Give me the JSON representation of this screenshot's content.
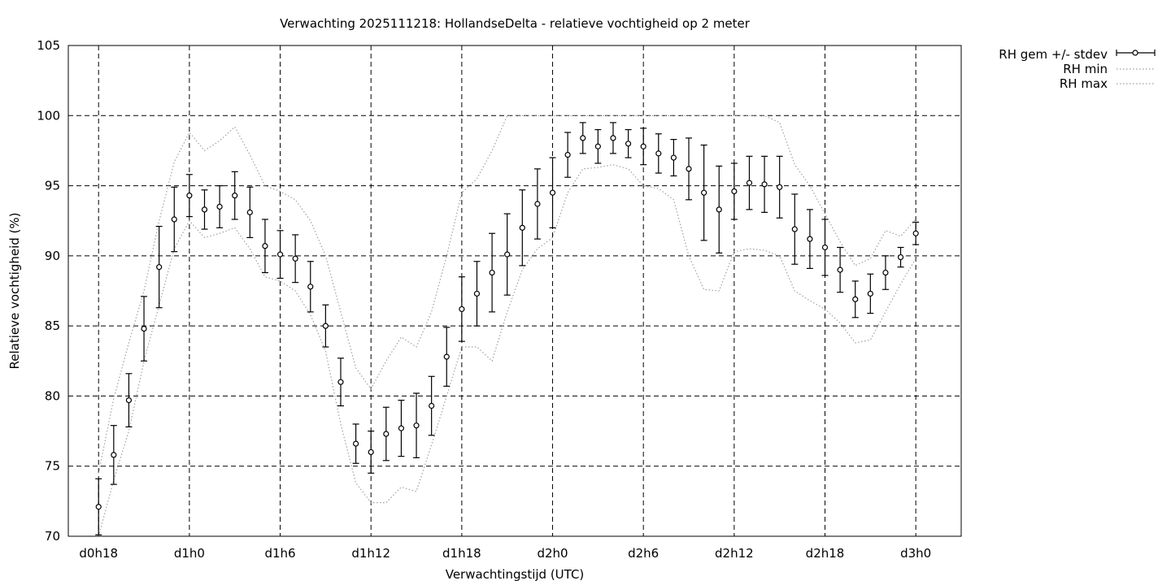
{
  "chart_data": {
    "type": "line",
    "title": "Verwachting 2025111218: HollandseDelta - relatieve vochtigheid op 2 meter",
    "xlabel": "Verwachtingstijd (UTC)",
    "ylabel": "Relatieve vochtigheid (%)",
    "xlim": [
      16,
      75
    ],
    "ylim": [
      70,
      105
    ],
    "xticks": [
      {
        "x": 18,
        "label": "d0h18"
      },
      {
        "x": 24,
        "label": "d1h0"
      },
      {
        "x": 30,
        "label": "d1h6"
      },
      {
        "x": 36,
        "label": "d1h12"
      },
      {
        "x": 42,
        "label": "d1h18"
      },
      {
        "x": 48,
        "label": "d2h0"
      },
      {
        "x": 54,
        "label": "d2h6"
      },
      {
        "x": 60,
        "label": "d2h12"
      },
      {
        "x": 66,
        "label": "d2h18"
      },
      {
        "x": 72,
        "label": "d3h0"
      }
    ],
    "yticks": [
      70,
      75,
      80,
      85,
      90,
      95,
      100,
      105
    ],
    "grid": true,
    "legend_position": "outside-top-right",
    "x": [
      18,
      19,
      20,
      21,
      22,
      23,
      24,
      25,
      26,
      27,
      28,
      29,
      30,
      31,
      32,
      33,
      34,
      35,
      36,
      37,
      38,
      39,
      40,
      41,
      42,
      43,
      44,
      45,
      46,
      47,
      48,
      49,
      50,
      51,
      52,
      53,
      54,
      55,
      56,
      57,
      58,
      59,
      60,
      61,
      62,
      63,
      64,
      65,
      66,
      67,
      68,
      69,
      70,
      71,
      72
    ],
    "series": [
      {
        "name": "RH gem +/- stdev",
        "style": "errorbars",
        "values": [
          72.1,
          75.8,
          79.7,
          84.8,
          89.2,
          92.6,
          94.3,
          93.3,
          93.5,
          94.3,
          93.1,
          90.7,
          90.1,
          89.8,
          87.8,
          85.0,
          81.0,
          76.6,
          76.0,
          77.3,
          77.7,
          77.9,
          79.3,
          82.8,
          86.2,
          87.3,
          88.8,
          90.1,
          92.0,
          93.7,
          94.5,
          97.2,
          98.4,
          97.8,
          98.4,
          98.0,
          97.8,
          97.3,
          97.0,
          96.2,
          94.5,
          93.3,
          94.6,
          95.2,
          95.1,
          94.9,
          91.9,
          91.2,
          90.6,
          89.0,
          86.9,
          87.3,
          88.8,
          89.9,
          91.6
        ],
        "stdev": [
          2.0,
          2.1,
          1.9,
          2.3,
          2.9,
          2.3,
          1.5,
          1.4,
          1.5,
          1.7,
          1.8,
          1.9,
          1.7,
          1.7,
          1.8,
          1.5,
          1.7,
          1.4,
          1.5,
          1.9,
          2.0,
          2.3,
          2.1,
          2.1,
          2.3,
          2.3,
          2.8,
          2.9,
          2.7,
          2.5,
          2.5,
          1.6,
          1.1,
          1.2,
          1.1,
          1.0,
          1.3,
          1.4,
          1.3,
          2.2,
          3.4,
          3.1,
          2.0,
          1.9,
          2.0,
          2.2,
          2.5,
          2.1,
          2.0,
          1.6,
          1.3,
          1.4,
          1.2,
          0.7,
          0.8
        ]
      },
      {
        "name": "RH min",
        "style": "dotted",
        "values": [
          70.0,
          74.0,
          77.5,
          82.5,
          86.5,
          90.5,
          92.5,
          91.3,
          91.6,
          92.0,
          90.5,
          88.5,
          88.2,
          87.5,
          85.8,
          83.2,
          78.0,
          73.8,
          72.4,
          72.4,
          73.5,
          73.2,
          76.5,
          80.0,
          83.5,
          83.5,
          82.5,
          86.0,
          89.0,
          90.5,
          91.3,
          94.5,
          96.2,
          96.3,
          96.5,
          96.2,
          95.0,
          94.8,
          94.0,
          90.0,
          87.6,
          87.5,
          90.3,
          90.5,
          90.4,
          90.0,
          87.5,
          86.8,
          86.2,
          85.2,
          83.8,
          84.0,
          86.0,
          88.0,
          89.8
        ]
      },
      {
        "name": "RH max",
        "style": "dotted",
        "values": [
          74.5,
          79.8,
          83.8,
          87.5,
          92.5,
          96.7,
          98.8,
          97.5,
          98.2,
          99.2,
          97.2,
          95.0,
          94.6,
          94.0,
          92.5,
          90.0,
          86.0,
          82.0,
          80.5,
          82.5,
          84.2,
          83.5,
          86.0,
          90.0,
          94.5,
          95.5,
          97.5,
          100.0,
          100.0,
          100.0,
          100.0,
          100.0,
          100.0,
          100.0,
          100.0,
          100.0,
          100.0,
          100.0,
          100.0,
          100.0,
          100.0,
          100.0,
          100.0,
          100.0,
          100.0,
          99.5,
          96.5,
          95.0,
          93.0,
          91.0,
          89.3,
          89.8,
          91.8,
          91.4,
          92.6
        ]
      }
    ]
  }
}
